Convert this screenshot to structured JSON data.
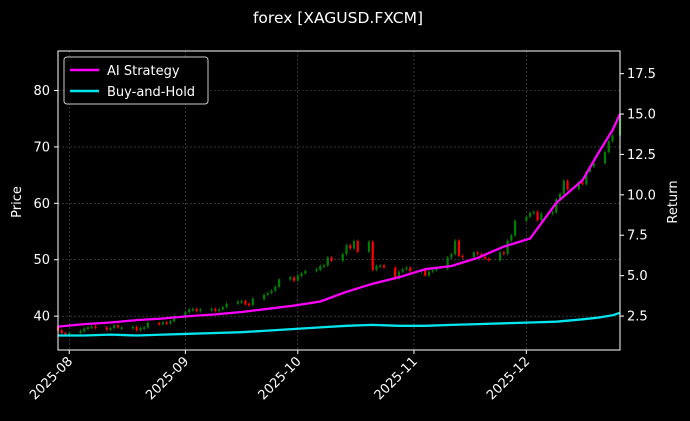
{
  "chart_data": {
    "type": "candlestick+line",
    "title": "forex [XAGUSD.FXCM]",
    "ylabel_left": "Price",
    "ylabel_right": "Return",
    "left_axis": {
      "ylim": [
        34,
        87
      ],
      "ticks": [
        40,
        50,
        60,
        70,
        80
      ]
    },
    "right_axis": {
      "ylim": [
        0.4,
        18.9
      ],
      "ticks": [
        "2.5",
        "5.0",
        "7.5",
        "10.0",
        "12.5",
        "15.0",
        "17.5"
      ]
    },
    "x_axis": {
      "range": [
        "2025-07-29",
        "2025-12-26"
      ],
      "ticks": [
        "2025-08",
        "2025-09",
        "2025-10",
        "2025-11",
        "2025-12"
      ],
      "tick_dates": [
        "2025-08-01",
        "2025-09-01",
        "2025-10-01",
        "2025-11-01",
        "2025-12-01"
      ]
    },
    "grid": true,
    "legend_position": "top-left",
    "colors": {
      "background": "#000000",
      "up": "#008000",
      "down": "#ff0000",
      "strategy": "#ff00ff",
      "buyhold": "#00e5ee",
      "grid": "#555555"
    },
    "series": [
      {
        "name": "AI Strategy",
        "axis": "right",
        "points": [
          [
            "2025-07-29",
            1.85
          ],
          [
            "2025-08-05",
            2.0
          ],
          [
            "2025-08-12",
            2.1
          ],
          [
            "2025-08-19",
            2.25
          ],
          [
            "2025-08-26",
            2.35
          ],
          [
            "2025-09-02",
            2.5
          ],
          [
            "2025-09-09",
            2.6
          ],
          [
            "2025-09-16",
            2.75
          ],
          [
            "2025-09-23",
            2.95
          ],
          [
            "2025-09-30",
            3.15
          ],
          [
            "2025-10-07",
            3.4
          ],
          [
            "2025-10-14",
            4.0
          ],
          [
            "2025-10-21",
            4.5
          ],
          [
            "2025-10-28",
            4.9
          ],
          [
            "2025-11-04",
            5.4
          ],
          [
            "2025-11-11",
            5.6
          ],
          [
            "2025-11-18",
            6.1
          ],
          [
            "2025-11-25",
            6.8
          ],
          [
            "2025-12-02",
            7.3
          ],
          [
            "2025-12-09",
            9.5
          ],
          [
            "2025-12-16",
            10.9
          ],
          [
            "2025-12-20",
            12.5
          ],
          [
            "2025-12-24",
            14.0
          ],
          [
            "2025-12-26",
            15.0
          ]
        ]
      },
      {
        "name": "Buy-and-Hold",
        "axis": "right",
        "points": [
          [
            "2025-07-29",
            1.3
          ],
          [
            "2025-08-05",
            1.3
          ],
          [
            "2025-08-12",
            1.35
          ],
          [
            "2025-08-19",
            1.3
          ],
          [
            "2025-08-26",
            1.35
          ],
          [
            "2025-09-02",
            1.4
          ],
          [
            "2025-09-09",
            1.45
          ],
          [
            "2025-09-16",
            1.5
          ],
          [
            "2025-09-23",
            1.6
          ],
          [
            "2025-09-30",
            1.7
          ],
          [
            "2025-10-07",
            1.8
          ],
          [
            "2025-10-14",
            1.9
          ],
          [
            "2025-10-21",
            1.95
          ],
          [
            "2025-10-28",
            1.9
          ],
          [
            "2025-11-04",
            1.9
          ],
          [
            "2025-11-11",
            1.95
          ],
          [
            "2025-11-18",
            2.0
          ],
          [
            "2025-11-25",
            2.05
          ],
          [
            "2025-12-02",
            2.1
          ],
          [
            "2025-12-09",
            2.15
          ],
          [
            "2025-12-16",
            2.3
          ],
          [
            "2025-12-20",
            2.4
          ],
          [
            "2025-12-24",
            2.55
          ],
          [
            "2025-12-26",
            2.7
          ]
        ]
      }
    ],
    "candles": [
      [
        "2025-07-29",
        38.2,
        37.4
      ],
      [
        "2025-07-30",
        37.5,
        37.0
      ],
      [
        "2025-07-31",
        37.0,
        36.8
      ],
      [
        "2025-08-01",
        36.9,
        37.0
      ],
      [
        "2025-08-04",
        37.1,
        37.4
      ],
      [
        "2025-08-05",
        37.3,
        37.8
      ],
      [
        "2025-08-06",
        37.8,
        38.0
      ],
      [
        "2025-08-07",
        38.0,
        38.2
      ],
      [
        "2025-08-08",
        38.2,
        38.1
      ],
      [
        "2025-08-11",
        38.0,
        37.6
      ],
      [
        "2025-08-12",
        37.6,
        37.9
      ],
      [
        "2025-08-13",
        37.9,
        38.4
      ],
      [
        "2025-08-14",
        38.4,
        38.0
      ],
      [
        "2025-08-15",
        38.0,
        38.0
      ],
      [
        "2025-08-18",
        38.0,
        38.1
      ],
      [
        "2025-08-19",
        38.1,
        37.5
      ],
      [
        "2025-08-20",
        37.5,
        37.9
      ],
      [
        "2025-08-21",
        37.9,
        38.0
      ],
      [
        "2025-08-22",
        38.0,
        38.8
      ],
      [
        "2025-08-25",
        38.8,
        38.6
      ],
      [
        "2025-08-26",
        38.6,
        38.9
      ],
      [
        "2025-08-27",
        38.9,
        38.7
      ],
      [
        "2025-08-28",
        38.7,
        39.1
      ],
      [
        "2025-08-29",
        39.1,
        39.9
      ],
      [
        "2025-09-01",
        39.8,
        40.7
      ],
      [
        "2025-09-02",
        40.7,
        41.2
      ],
      [
        "2025-09-03",
        41.0,
        41.3
      ],
      [
        "2025-09-04",
        41.3,
        40.9
      ],
      [
        "2025-09-05",
        40.9,
        41.2
      ],
      [
        "2025-09-08",
        41.2,
        41.3
      ],
      [
        "2025-09-09",
        41.3,
        40.9
      ],
      [
        "2025-09-10",
        40.9,
        41.2
      ],
      [
        "2025-09-11",
        41.2,
        41.6
      ],
      [
        "2025-09-12",
        41.6,
        42.2
      ],
      [
        "2025-09-15",
        42.2,
        42.6
      ],
      [
        "2025-09-16",
        42.5,
        42.7
      ],
      [
        "2025-09-17",
        42.7,
        42.1
      ],
      [
        "2025-09-18",
        42.2,
        42.0
      ],
      [
        "2025-09-19",
        42.0,
        43.1
      ],
      [
        "2025-09-22",
        43.0,
        43.8
      ],
      [
        "2025-09-23",
        43.8,
        44.1
      ],
      [
        "2025-09-24",
        44.1,
        44.5
      ],
      [
        "2025-09-25",
        44.5,
        45.2
      ],
      [
        "2025-09-26",
        45.2,
        46.5
      ],
      [
        "2025-09-29",
        46.5,
        46.9
      ],
      [
        "2025-09-30",
        46.9,
        46.3
      ],
      [
        "2025-10-01",
        46.3,
        47.2
      ],
      [
        "2025-10-02",
        47.1,
        47.6
      ],
      [
        "2025-10-03",
        47.6,
        48.0
      ],
      [
        "2025-10-06",
        48.0,
        48.3
      ],
      [
        "2025-10-07",
        48.2,
        48.9
      ],
      [
        "2025-10-08",
        48.9,
        49.0
      ],
      [
        "2025-10-09",
        49.0,
        50.4
      ],
      [
        "2025-10-10",
        50.4,
        49.8
      ],
      [
        "2025-10-13",
        49.8,
        51.0
      ],
      [
        "2025-10-14",
        51.0,
        52.6
      ],
      [
        "2025-10-15",
        52.6,
        52.0
      ],
      [
        "2025-10-16",
        52.0,
        53.3
      ],
      [
        "2025-10-17",
        53.3,
        51.4
      ],
      [
        "2025-10-20",
        51.4,
        53.2
      ],
      [
        "2025-10-21",
        53.2,
        48.2
      ],
      [
        "2025-10-22",
        48.2,
        48.9
      ],
      [
        "2025-10-23",
        48.9,
        49.0
      ],
      [
        "2025-10-24",
        49.0,
        48.6
      ],
      [
        "2025-10-27",
        48.6,
        46.7
      ],
      [
        "2025-10-28",
        46.7,
        47.9
      ],
      [
        "2025-10-29",
        47.9,
        48.3
      ],
      [
        "2025-10-30",
        48.3,
        48.6
      ],
      [
        "2025-10-31",
        48.6,
        48.0
      ],
      [
        "2025-11-03",
        48.0,
        48.1
      ],
      [
        "2025-11-04",
        48.1,
        47.2
      ],
      [
        "2025-11-05",
        47.2,
        47.9
      ],
      [
        "2025-11-06",
        47.9,
        48.2
      ],
      [
        "2025-11-07",
        48.2,
        48.4
      ],
      [
        "2025-11-10",
        48.4,
        50.4
      ],
      [
        "2025-11-11",
        50.4,
        51.0
      ],
      [
        "2025-11-12",
        51.0,
        53.4
      ],
      [
        "2025-11-13",
        53.4,
        50.7
      ],
      [
        "2025-11-14",
        50.7,
        50.5
      ],
      [
        "2025-11-17",
        50.5,
        51.3
      ],
      [
        "2025-11-18",
        51.3,
        51.0
      ],
      [
        "2025-11-19",
        51.0,
        50.5
      ],
      [
        "2025-11-20",
        50.5,
        50.2
      ],
      [
        "2025-11-21",
        50.2,
        49.9
      ],
      [
        "2025-11-24",
        49.9,
        51.3
      ],
      [
        "2025-11-25",
        51.3,
        51.0
      ],
      [
        "2025-11-26",
        51.0,
        53.4
      ],
      [
        "2025-11-27",
        53.4,
        54.3
      ],
      [
        "2025-11-28",
        54.3,
        56.9
      ],
      [
        "2025-12-01",
        56.9,
        57.6
      ],
      [
        "2025-12-02",
        57.6,
        58.3
      ],
      [
        "2025-12-03",
        58.3,
        58.5
      ],
      [
        "2025-12-04",
        58.5,
        57.0
      ],
      [
        "2025-12-05",
        57.0,
        58.2
      ],
      [
        "2025-12-08",
        58.2,
        58.4
      ],
      [
        "2025-12-09",
        58.4,
        60.7
      ],
      [
        "2025-12-10",
        60.7,
        61.7
      ],
      [
        "2025-12-11",
        61.7,
        64.0
      ],
      [
        "2025-12-12",
        64.0,
        62.5
      ],
      [
        "2025-12-15",
        62.5,
        63.7
      ],
      [
        "2025-12-16",
        63.7,
        63.4
      ],
      [
        "2025-12-17",
        63.4,
        65.6
      ],
      [
        "2025-12-18",
        65.6,
        66.5
      ],
      [
        "2025-12-19",
        66.5,
        67.1
      ],
      [
        "2025-12-22",
        67.1,
        69.1
      ],
      [
        "2025-12-23",
        69.1,
        71.0
      ],
      [
        "2025-12-24",
        71.0,
        72.0
      ],
      [
        "2025-12-26",
        72.0,
        75.5
      ]
    ]
  }
}
